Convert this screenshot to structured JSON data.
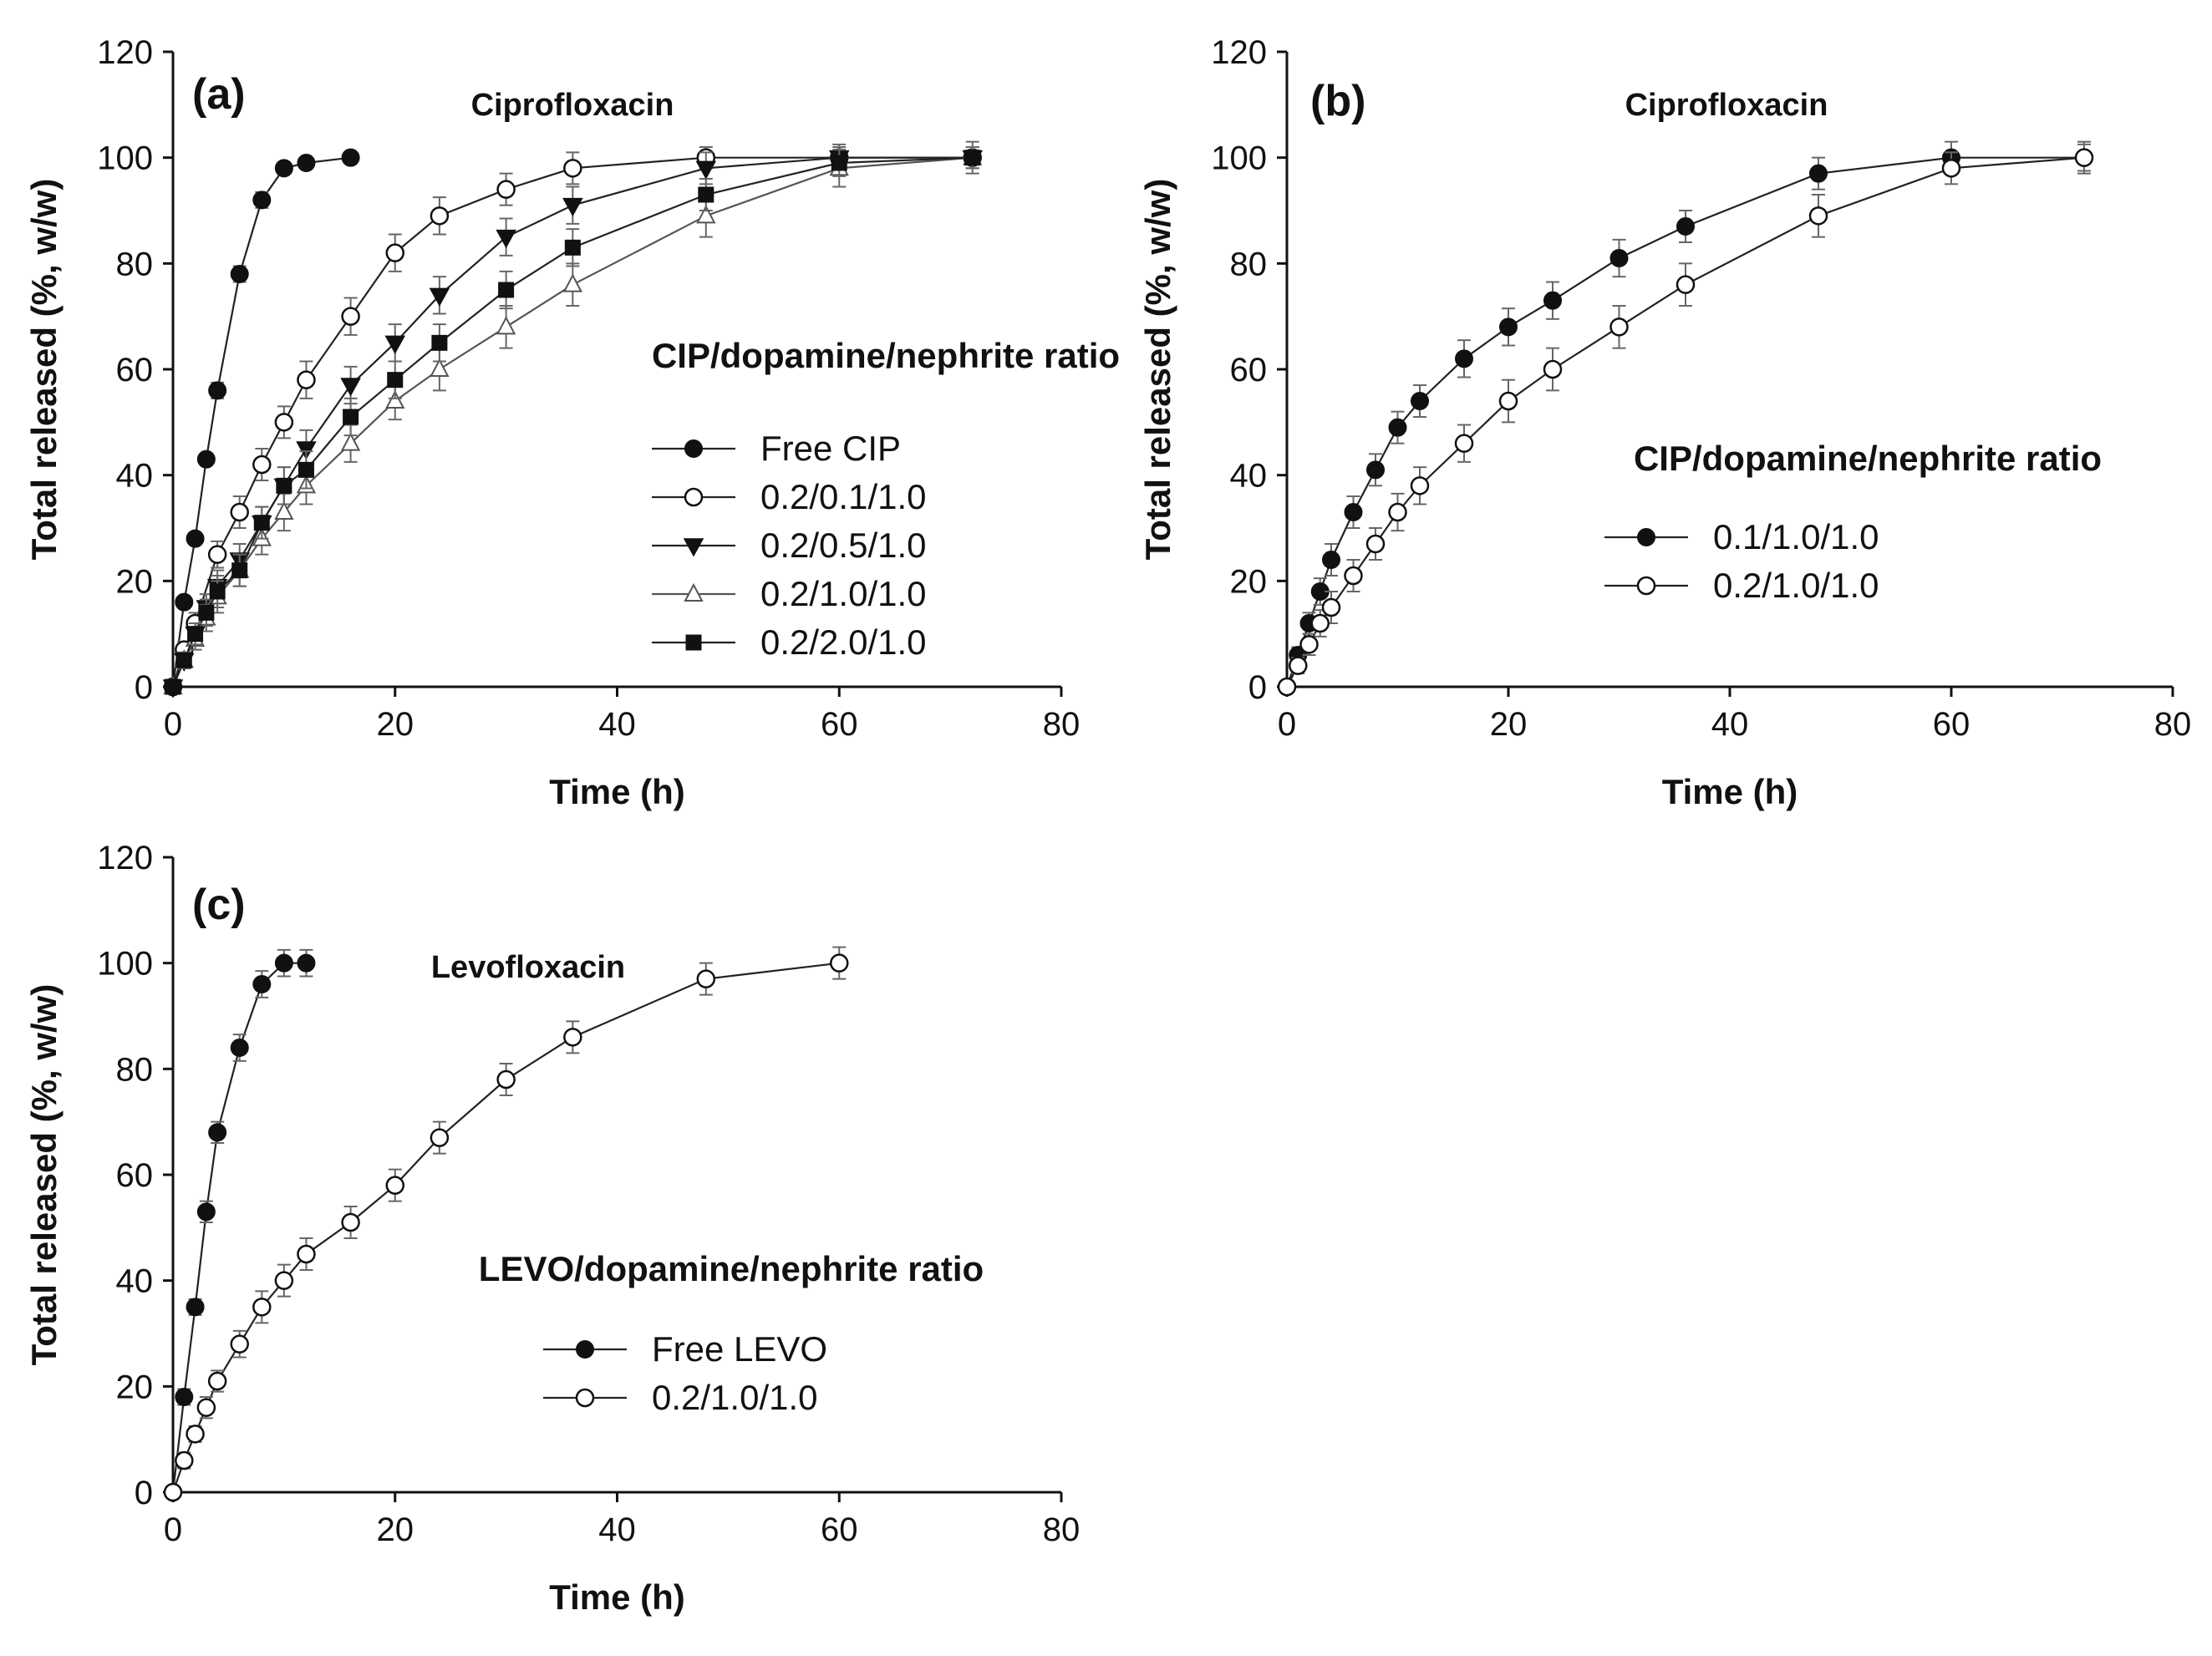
{
  "chart_data": [
    {
      "type": "line",
      "panel_label": "(a)",
      "title": "Ciprofloxacin",
      "xlabel": "Time (h)",
      "ylabel": "Total released (%, w/w)",
      "xlim": [
        0,
        80
      ],
      "ylim": [
        0,
        120
      ],
      "xticks": [
        "0",
        "20",
        "40",
        "60",
        "80"
      ],
      "yticks": [
        "0",
        "20",
        "40",
        "60",
        "80",
        "100",
        "120"
      ],
      "legend_title": "CIP/dopamine/nephrite ratio",
      "series": [
        {
          "name": "Free CIP",
          "marker": "filled-circle",
          "x": [
            0,
            1,
            2,
            3,
            4,
            6,
            8,
            10,
            12,
            16
          ],
          "y": [
            0,
            16,
            28,
            43,
            56,
            78,
            92,
            98,
            99,
            100
          ],
          "err": [
            0,
            1,
            1,
            1,
            1.5,
            1.5,
            1.5,
            1,
            1,
            1
          ]
        },
        {
          "name": "0.2/0.1/1.0",
          "marker": "open-circle",
          "x": [
            0,
            1,
            2,
            4,
            6,
            8,
            10,
            12,
            16,
            20,
            24,
            30,
            36,
            48,
            60,
            72
          ],
          "y": [
            0,
            7,
            12,
            25,
            33,
            42,
            50,
            58,
            70,
            82,
            89,
            94,
            98,
            100,
            100,
            100
          ],
          "err": [
            0,
            1.5,
            2,
            2.5,
            3,
            3,
            3,
            3.5,
            3.5,
            3.5,
            3.5,
            3,
            3,
            2,
            2,
            2
          ]
        },
        {
          "name": "0.2/0.5/1.0",
          "marker": "filled-triangle-down",
          "x": [
            0,
            1,
            2,
            3,
            4,
            6,
            8,
            10,
            12,
            16,
            20,
            24,
            30,
            36,
            48,
            60,
            72
          ],
          "y": [
            0,
            5,
            10,
            15,
            19,
            24,
            31,
            38,
            45,
            57,
            65,
            74,
            85,
            91,
            98,
            100,
            100
          ],
          "err": [
            0,
            1.5,
            2,
            2.5,
            3,
            3,
            3,
            3.5,
            3.5,
            3.5,
            3.5,
            3.5,
            3.5,
            3.5,
            3,
            2.5,
            2
          ]
        },
        {
          "name": "0.2/1.0/1.0",
          "marker": "open-triangle-up",
          "x": [
            0,
            1,
            2,
            3,
            4,
            6,
            8,
            10,
            12,
            16,
            20,
            24,
            30,
            36,
            48,
            60,
            72
          ],
          "y": [
            0,
            5,
            9,
            13,
            17,
            22,
            28,
            33,
            38,
            46,
            54,
            60,
            68,
            76,
            89,
            98,
            100
          ],
          "err": [
            0,
            1.5,
            2,
            2.5,
            3,
            3,
            3,
            3.5,
            3.5,
            3.5,
            3.5,
            4,
            4,
            4,
            4,
            3.5,
            3
          ]
        },
        {
          "name": "0.2/2.0/1.0",
          "marker": "filled-square",
          "x": [
            0,
            1,
            2,
            3,
            4,
            6,
            8,
            10,
            12,
            16,
            20,
            24,
            30,
            36,
            48,
            60,
            72
          ],
          "y": [
            0,
            5,
            10,
            14,
            18,
            22,
            31,
            38,
            41,
            51,
            58,
            65,
            75,
            83,
            93,
            99,
            100
          ],
          "err": [
            0,
            1.5,
            2,
            2.5,
            3,
            3,
            3,
            3.5,
            3.5,
            3.5,
            3.5,
            3.5,
            3.5,
            3.5,
            3,
            2.5,
            2
          ]
        }
      ]
    },
    {
      "type": "line",
      "panel_label": "(b)",
      "title": "Ciprofloxacin",
      "xlabel": "Time (h)",
      "ylabel": "Total released (%, w/w)",
      "xlim": [
        0,
        80
      ],
      "ylim": [
        0,
        120
      ],
      "xticks": [
        "0",
        "20",
        "40",
        "60",
        "80"
      ],
      "yticks": [
        "0",
        "20",
        "40",
        "60",
        "80",
        "100",
        "120"
      ],
      "legend_title": "CIP/dopamine/nephrite ratio",
      "series": [
        {
          "name": "0.1/1.0/1.0",
          "marker": "filled-circle",
          "x": [
            0,
            1,
            2,
            3,
            4,
            6,
            8,
            10,
            12,
            16,
            20,
            24,
            30,
            36,
            48,
            60,
            72
          ],
          "y": [
            0,
            6,
            12,
            18,
            24,
            33,
            41,
            49,
            54,
            62,
            68,
            73,
            81,
            87,
            97,
            100,
            100
          ],
          "err": [
            0,
            1.5,
            2,
            2.5,
            3,
            3,
            3,
            3,
            3,
            3.5,
            3.5,
            3.5,
            3.5,
            3,
            3,
            3,
            3
          ]
        },
        {
          "name": "0.2/1.0/1.0",
          "marker": "open-circle",
          "x": [
            0,
            1,
            2,
            3,
            4,
            6,
            8,
            10,
            12,
            16,
            20,
            24,
            30,
            36,
            48,
            60,
            72
          ],
          "y": [
            0,
            4,
            8,
            12,
            15,
            21,
            27,
            33,
            38,
            46,
            54,
            60,
            68,
            76,
            89,
            98,
            100
          ],
          "err": [
            0,
            1.5,
            2,
            2.5,
            3,
            3,
            3,
            3.5,
            3.5,
            3.5,
            4,
            4,
            4,
            4,
            4,
            3,
            2.5
          ]
        }
      ]
    },
    {
      "type": "line",
      "panel_label": "(c)",
      "title": "Levofloxacin",
      "xlabel": "Time (h)",
      "ylabel": "Total released (%, w/w)",
      "xlim": [
        0,
        80
      ],
      "ylim": [
        0,
        120
      ],
      "xticks": [
        "0",
        "20",
        "40",
        "60",
        "80"
      ],
      "yticks": [
        "0",
        "20",
        "40",
        "60",
        "80",
        "100",
        "120"
      ],
      "legend_title": "LEVO/dopamine/nephrite ratio",
      "series": [
        {
          "name": "Free LEVO",
          "marker": "filled-circle",
          "x": [
            0,
            1,
            2,
            3,
            4,
            6,
            8,
            10,
            12
          ],
          "y": [
            0,
            18,
            35,
            53,
            68,
            84,
            96,
            100,
            100
          ],
          "err": [
            0,
            1.5,
            1.5,
            2,
            2,
            2.5,
            2.5,
            2.5,
            2.5
          ]
        },
        {
          "name": "0.2/1.0/1.0",
          "marker": "open-circle",
          "x": [
            0,
            1,
            2,
            3,
            4,
            6,
            8,
            10,
            12,
            16,
            20,
            24,
            30,
            36,
            48,
            60
          ],
          "y": [
            0,
            6,
            11,
            16,
            21,
            28,
            35,
            40,
            45,
            51,
            58,
            67,
            78,
            86,
            97,
            100
          ],
          "err": [
            0,
            1.5,
            1.5,
            2,
            2,
            2.5,
            3,
            3,
            3,
            3,
            3,
            3,
            3,
            3,
            3,
            3
          ]
        }
      ]
    }
  ]
}
